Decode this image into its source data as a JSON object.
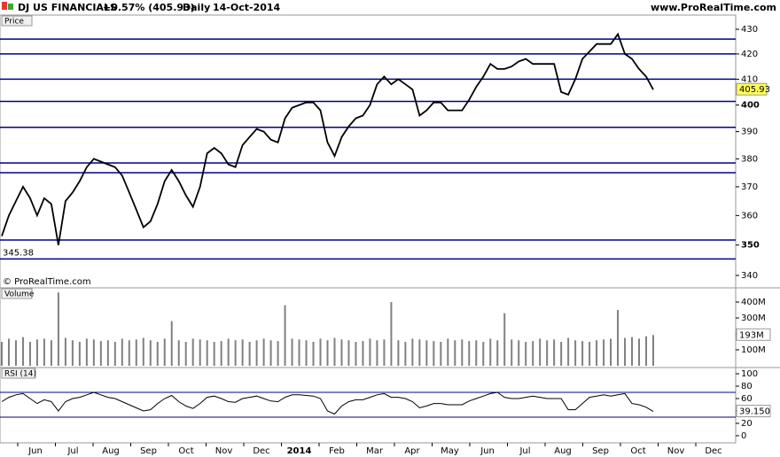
{
  "header": {
    "name": "DJ US FINANCIALS",
    "change": "+0.57% (405.93)",
    "period": "Daily",
    "date": "14-Oct-2014",
    "site": "www.ProRealTime.com"
  },
  "x_axis": [
    "Jun",
    "Jul",
    "Aug",
    "Sep",
    "Oct",
    "Nov",
    "Dec",
    "2014",
    "Feb",
    "Mar",
    "Apr",
    "May",
    "Jun",
    "Jul",
    "Aug",
    "Sep",
    "Oct",
    "Nov",
    "Dec"
  ],
  "chart_data": [
    {
      "type": "line",
      "title": "Price",
      "color": "#000000",
      "log_scale": true,
      "ylim": [
        336,
        435.5
      ],
      "yticks": [
        340,
        350,
        360,
        370,
        380,
        390,
        400,
        410,
        420,
        430
      ],
      "levels": [
        426,
        420,
        410,
        401.4,
        391.6,
        378.5,
        375,
        351.7,
        345.38
      ],
      "level_color": "#00008b",
      "copyright": "© ProRealTime.com",
      "values": [
        353,
        360,
        365,
        370,
        366,
        360,
        366,
        364,
        350,
        365,
        368,
        372,
        377,
        380,
        379,
        378,
        377,
        374,
        368,
        362,
        356,
        358,
        364,
        372,
        376,
        372,
        367,
        363,
        370,
        382,
        384,
        382,
        378,
        377,
        385,
        388,
        391,
        390,
        387,
        386,
        395,
        399,
        400,
        401,
        401,
        398,
        386,
        381,
        388,
        392,
        395,
        396,
        400,
        408,
        411,
        408,
        410,
        408,
        406,
        396,
        398,
        401,
        401,
        398,
        398,
        398,
        402,
        407,
        411,
        416,
        414,
        414,
        415,
        417,
        418,
        416,
        416,
        416,
        416,
        405,
        404,
        410,
        418,
        421,
        424,
        424,
        424,
        428,
        420,
        418,
        414,
        411,
        405.93
      ]
    },
    {
      "type": "bar",
      "title": "Volume",
      "color": "#808080",
      "ylim": [
        0,
        478
      ],
      "yticks": [
        {
          "value": 100,
          "label": "100M"
        },
        {
          "value": 200,
          "label": "200M"
        },
        {
          "value": 300,
          "label": "300M"
        },
        {
          "value": 400,
          "label": "400M"
        }
      ],
      "values": [
        150,
        170,
        160,
        180,
        150,
        165,
        170,
        160,
        460,
        175,
        160,
        150,
        170,
        165,
        155,
        160,
        150,
        170,
        160,
        165,
        175,
        160,
        150,
        170,
        280,
        160,
        150,
        170,
        165,
        160,
        150,
        155,
        170,
        160,
        165,
        150,
        160,
        170,
        160,
        155,
        380,
        170,
        165,
        160,
        150,
        170,
        160,
        175,
        165,
        160,
        150,
        155,
        170,
        160,
        165,
        400,
        160,
        150,
        170,
        165,
        160,
        155,
        150,
        170,
        160,
        165,
        155,
        160,
        150,
        170,
        160,
        330,
        165,
        160,
        150,
        155,
        170,
        160,
        165,
        150,
        175,
        160,
        155,
        150,
        160,
        165,
        170,
        350,
        175,
        180,
        170,
        185,
        193
      ],
      "value_labels": {
        "92": "193M"
      }
    },
    {
      "type": "line",
      "title": "RSI (14)",
      "color": "#000000",
      "ylim": [
        -2.9,
        102.9
      ],
      "yticks": [
        0,
        20,
        40,
        60,
        80,
        100
      ],
      "bands": [
        70,
        30
      ],
      "band_color": "#00008b",
      "values": [
        55,
        62,
        66,
        68,
        60,
        52,
        58,
        55,
        40,
        55,
        60,
        62,
        66,
        70,
        66,
        62,
        60,
        55,
        50,
        45,
        40,
        42,
        52,
        60,
        65,
        55,
        48,
        44,
        52,
        62,
        64,
        60,
        55,
        54,
        60,
        62,
        64,
        60,
        56,
        55,
        62,
        66,
        66,
        65,
        64,
        60,
        40,
        35,
        48,
        55,
        58,
        58,
        62,
        66,
        68,
        62,
        62,
        60,
        55,
        45,
        48,
        52,
        52,
        50,
        50,
        50,
        56,
        60,
        64,
        68,
        70,
        62,
        60,
        60,
        62,
        64,
        62,
        60,
        60,
        60,
        42,
        42,
        52,
        62,
        64,
        66,
        64,
        66,
        68,
        52,
        50,
        46,
        39.15
      ],
      "value_labels": {
        "92": "39.150"
      }
    }
  ]
}
